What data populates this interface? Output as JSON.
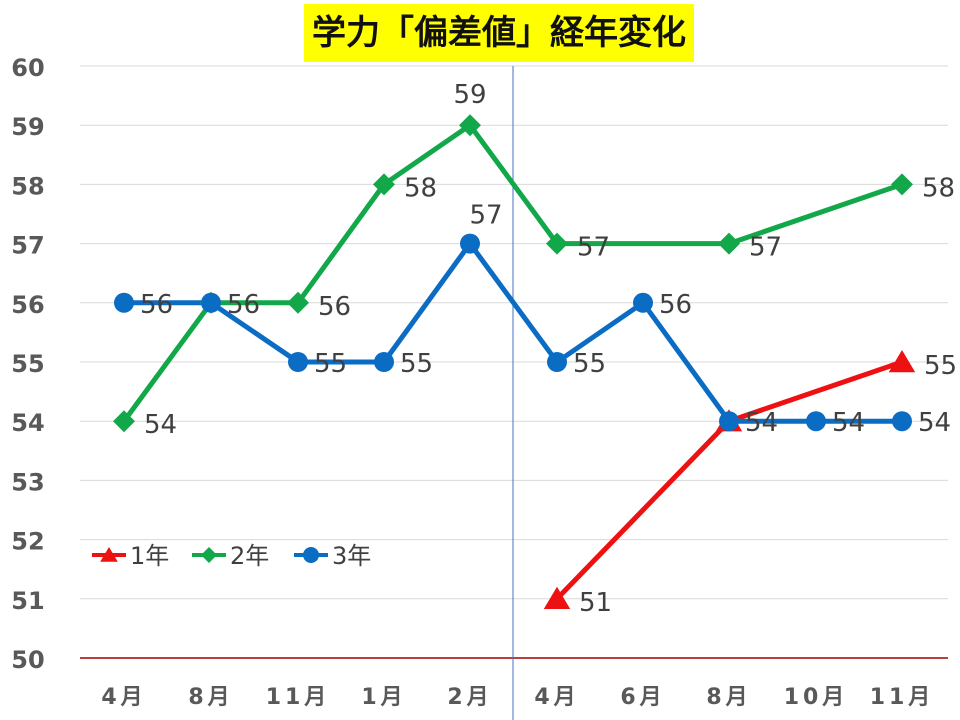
{
  "chart_data": {
    "type": "line",
    "title": "学力「偏差値」経年変化",
    "categories": [
      "4月",
      "8月",
      "11月",
      "1月",
      "2月",
      "4月",
      "6月",
      "8月",
      "10月",
      "11月"
    ],
    "ylim": [
      50,
      60
    ],
    "yticks": [
      "50",
      "51",
      "52",
      "53",
      "54",
      "55",
      "56",
      "57",
      "58",
      "59",
      "60"
    ],
    "grid": true,
    "legend_position": "left, middle",
    "series": [
      {
        "name": "1年",
        "color": "#ee1111",
        "marker": "triangle",
        "values": [
          null,
          null,
          null,
          null,
          null,
          51,
          null,
          54,
          null,
          55
        ],
        "labels": [
          null,
          null,
          null,
          null,
          null,
          "51",
          null,
          null,
          null,
          "55"
        ]
      },
      {
        "name": "2年",
        "color": "#12a84a",
        "marker": "diamond",
        "values": [
          54,
          56,
          56,
          58,
          59,
          57,
          null,
          57,
          null,
          58
        ],
        "labels": [
          "54",
          null,
          "56",
          "58",
          "59",
          "57",
          null,
          "57",
          null,
          "58"
        ]
      },
      {
        "name": "3年",
        "color": "#0b6cc4",
        "marker": "circle",
        "values": [
          56,
          56,
          55,
          55,
          57,
          55,
          56,
          54,
          54,
          54
        ],
        "labels": [
          "56",
          "56",
          "55",
          "55",
          "57",
          "55",
          "56",
          "54",
          "54",
          "54"
        ]
      }
    ]
  }
}
